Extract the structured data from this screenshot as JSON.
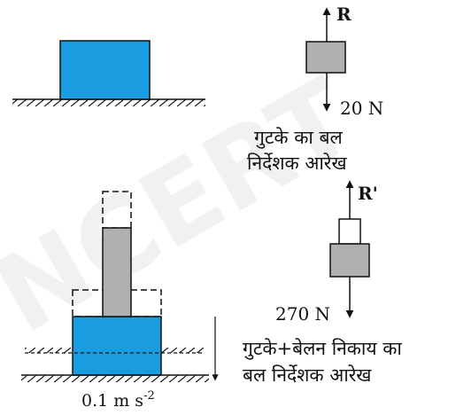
{
  "watermark": "© NCERT not to be republished",
  "colors": {
    "block_fill": "#1a9de0",
    "rod_fill": "#b0b0b0",
    "line": "#111111"
  },
  "labels": {
    "top_normal_force": "R",
    "top_weight": "20 N",
    "top_caption_line1": "गुटके का बल",
    "top_caption_line2": "निर्देशक आरेख",
    "bottom_normal_force": "R'",
    "bottom_weight": "270 N",
    "bottom_caption_line1": "गुटके+बेलन निकाय का",
    "bottom_caption_line2": "बल निर्देशक आरेख",
    "bottom_displacement": "0.1 m s",
    "bottom_displacement_exp": "-2"
  }
}
